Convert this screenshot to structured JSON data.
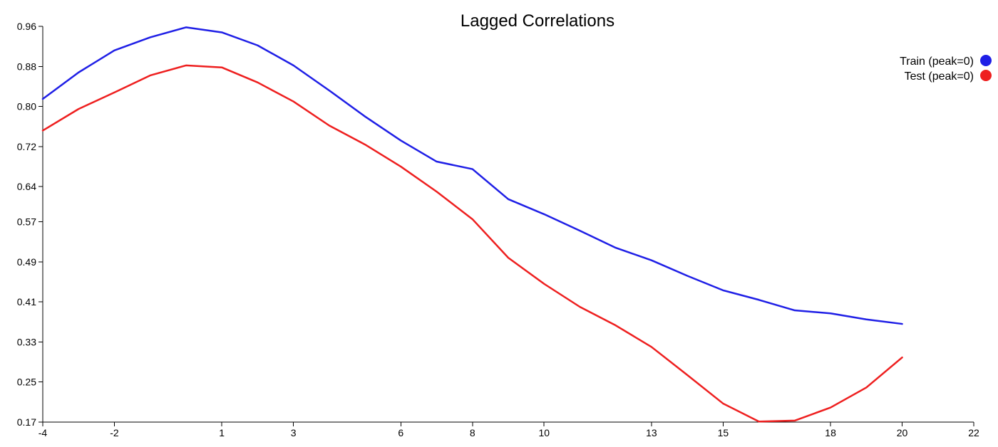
{
  "chart_data": {
    "type": "line",
    "title": "Lagged Correlations",
    "xlabel": "",
    "ylabel": "",
    "x_ticks": [
      -4,
      -2,
      1,
      3,
      6,
      8,
      10,
      13,
      15,
      18,
      20,
      22
    ],
    "x_tick_labels": [
      "-4",
      "-2",
      "1",
      "3",
      "6",
      "8",
      "10",
      "13",
      "15",
      "18",
      "20",
      "22"
    ],
    "y_ticks": [
      0.17,
      0.25,
      0.33,
      0.41,
      0.49,
      0.57,
      0.64,
      0.72,
      0.8,
      0.88,
      0.96
    ],
    "y_tick_labels": [
      "0.17",
      "0.25",
      "0.33",
      "0.41",
      "0.49",
      "0.57",
      "0.64",
      "0.72",
      "0.80",
      "0.88",
      "0.96"
    ],
    "xlim": [
      -4,
      22
    ],
    "ylim": [
      0.17,
      0.96
    ],
    "grid": false,
    "legend": "top-right",
    "x": [
      -4,
      -3,
      -2,
      -1,
      0,
      1,
      2,
      3,
      4,
      5,
      6,
      7,
      8,
      9,
      10,
      11,
      12,
      13,
      14,
      15,
      16,
      17,
      18,
      19,
      20
    ],
    "series": [
      {
        "name": "Train (peak=0)",
        "color": "#1f1fe6",
        "values": [
          0.815,
          0.868,
          0.912,
          0.938,
          0.958,
          0.948,
          0.922,
          0.882,
          0.832,
          0.78,
          0.732,
          0.69,
          0.675,
          0.615,
          0.585,
          0.552,
          0.518,
          0.493,
          0.462,
          0.433,
          0.414,
          0.393,
          0.387,
          0.375,
          0.366
        ]
      },
      {
        "name": "Test (peak=0)",
        "color": "#ee1f1f",
        "values": [
          0.752,
          0.795,
          0.828,
          0.862,
          0.882,
          0.878,
          0.848,
          0.81,
          0.762,
          0.724,
          0.68,
          0.63,
          0.575,
          0.498,
          0.446,
          0.4,
          0.363,
          0.32,
          0.264,
          0.207,
          0.171,
          0.173,
          0.199,
          0.239,
          0.299
        ]
      }
    ]
  }
}
